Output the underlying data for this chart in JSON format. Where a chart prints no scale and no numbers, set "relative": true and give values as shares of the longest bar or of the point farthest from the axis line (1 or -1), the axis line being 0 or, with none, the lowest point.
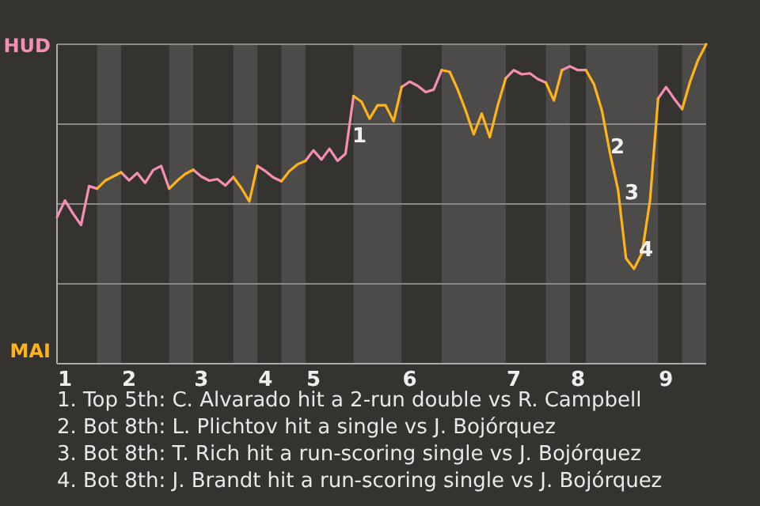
{
  "chart_data": {
    "type": "line",
    "relative": true,
    "legend": "left",
    "grid": true,
    "marker": "none",
    "line_style": "solid",
    "categories": [
      null,
      "1",
      null,
      null,
      null,
      null,
      null,
      null,
      null,
      "2",
      null,
      null,
      null,
      null,
      null,
      null,
      null,
      null,
      "3",
      null,
      null,
      null,
      null,
      null,
      null,
      null,
      "4",
      null,
      null,
      null,
      null,
      null,
      "5",
      null,
      null,
      null,
      null,
      null,
      null,
      null,
      null,
      null,
      null,
      null,
      "6",
      null,
      null,
      null,
      null,
      null,
      null,
      null,
      null,
      null,
      null,
      null,
      null,
      "7",
      null,
      null,
      null,
      null,
      null,
      null,
      null,
      "8",
      null,
      null,
      null,
      null,
      null,
      null,
      null,
      null,
      null,
      null,
      "9",
      null,
      null,
      null,
      null,
      null
    ],
    "series": [
      {
        "name": "HUD",
        "color": "#f48fb1",
        "values": [
          0.459,
          0.511,
          0.47,
          0.434,
          0.556,
          0.548,
          null,
          null,
          0.599,
          0.574,
          0.597,
          0.566,
          0.606,
          0.619,
          0.548,
          null,
          null,
          0.607,
          0.586,
          0.573,
          0.578,
          0.558,
          0.584,
          null,
          null,
          0.619,
          0.603,
          0.583,
          0.571,
          null,
          null,
          0.635,
          0.668,
          0.639,
          0.673,
          0.635,
          0.657,
          0.838,
          null,
          null,
          null,
          null,
          null,
          0.866,
          0.883,
          0.87,
          0.85,
          0.858,
          0.919,
          null,
          null,
          null,
          null,
          null,
          null,
          null,
          0.894,
          0.919,
          0.906,
          0.909,
          0.891,
          0.88,
          null,
          0.919,
          0.931,
          0.919,
          0.919,
          null,
          null,
          null,
          null,
          null,
          null,
          null,
          null,
          0.83,
          0.866,
          0.83,
          0.797,
          null,
          null,
          null
        ]
      },
      {
        "name": "MAI",
        "color": "#ffb31a",
        "values": [
          null,
          null,
          null,
          null,
          null,
          0.548,
          0.573,
          0.586,
          0.599,
          null,
          null,
          null,
          null,
          null,
          0.548,
          0.573,
          0.594,
          0.607,
          null,
          null,
          null,
          null,
          0.584,
          0.55,
          0.508,
          0.619,
          null,
          null,
          0.571,
          0.603,
          0.624,
          0.635,
          null,
          null,
          null,
          null,
          null,
          0.838,
          0.82,
          0.767,
          0.809,
          0.809,
          0.759,
          0.866,
          null,
          null,
          null,
          null,
          0.919,
          0.914,
          0.858,
          0.792,
          0.718,
          0.783,
          0.709,
          0.809,
          0.894,
          null,
          null,
          null,
          null,
          0.88,
          0.824,
          0.919,
          null,
          null,
          0.919,
          0.875,
          0.792,
          0.659,
          0.545,
          0.33,
          0.297,
          0.347,
          0.512,
          0.83,
          null,
          null,
          0.797,
          0.883,
          0.952,
          1
        ]
      }
    ],
    "annotations": [
      "1",
      "2",
      "3",
      "4",
      "1. Top 5th: C. Alvarado hit a 2-run double vs R. Campbell",
      "2. Bot 8th: L. Plichtov hit a single vs J. Bojórquez",
      "3. Bot 8th: T. Rich hit a run-scoring single vs J. Bojórquez",
      "4. Bot 8th: J. Brandt hit a run-scoring single vs J. Bojórquez"
    ]
  }
}
